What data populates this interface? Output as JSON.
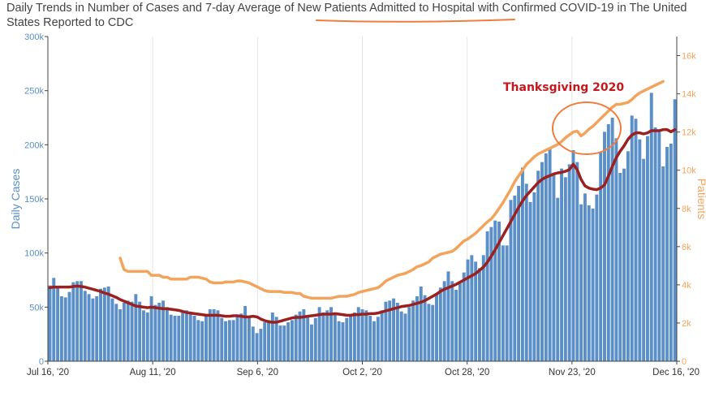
{
  "page": {
    "title_part1": "Daily Trends in Number of Cases and 7-day Average of ",
    "title_highlight": "New Patients Admitted to Hospital",
    "title_part2": " with Confirmed COVID-19 in The United States Reported to CDC"
  },
  "chart_data": {
    "type": "bar",
    "title": "Daily Trends in Number of Cases and 7-day Average of New Patients Admitted to Hospital with Confirmed COVID-19 in The United States Reported to CDC",
    "x_start": "2020-07-16",
    "x_end": "2020-12-16",
    "x_ticks": [
      "Jul 16, '20",
      "Aug 11, '20",
      "Sep 6, '20",
      "Oct 2, '20",
      "Oct 28, '20",
      "Nov 23, '20",
      "Dec 16, '20"
    ],
    "y_left": {
      "label": "Daily Cases",
      "ylim": [
        0,
        300000
      ],
      "ticks": [
        "0",
        "50k",
        "100k",
        "150k",
        "200k",
        "250k",
        "300k"
      ],
      "color": "#5b8fc7"
    },
    "y_right": {
      "label": "Patients",
      "ylim": [
        0,
        17000
      ],
      "ticks": [
        "0",
        "2k",
        "4k",
        "6k",
        "8k",
        "10k",
        "12k",
        "14k",
        "16k"
      ],
      "color": "#f3a45c"
    },
    "grid": "vertical",
    "series": [
      {
        "name": "Daily Cases",
        "kind": "bar",
        "axis": "left",
        "color": "#5b8fc7",
        "values": [
          70000,
          77000,
          68000,
          60000,
          59000,
          64000,
          73000,
          74000,
          74000,
          65000,
          62000,
          58000,
          60000,
          67000,
          68000,
          69000,
          58000,
          53000,
          48000,
          54000,
          56000,
          55000,
          62000,
          55000,
          47000,
          45000,
          60000,
          52000,
          54000,
          56000,
          50000,
          43000,
          42000,
          42000,
          47000,
          47000,
          45000,
          42000,
          38000,
          37000,
          43000,
          48000,
          48000,
          47000,
          40000,
          37000,
          38000,
          38000,
          42000,
          44000,
          51000,
          40000,
          32000,
          26000,
          30000,
          36000,
          38000,
          45000,
          41000,
          33000,
          33000,
          36000,
          38000,
          43000,
          46000,
          48000,
          42000,
          34000,
          40000,
          50000,
          45000,
          47000,
          50000,
          44000,
          37000,
          36000,
          40000,
          43000,
          45000,
          50000,
          48000,
          47000,
          42000,
          37000,
          41000,
          47000,
          55000,
          56000,
          58000,
          54000,
          46000,
          44000,
          50000,
          56000,
          60000,
          69000,
          61000,
          53000,
          52000,
          62000,
          68000,
          74000,
          83000,
          74000,
          66000,
          72000,
          82000,
          94000,
          98000,
          92000,
          86000,
          98000,
          120000,
          124000,
          130000,
          129000,
          107000,
          107000,
          149000,
          153000,
          162000,
          179000,
          164000,
          147000,
          156000,
          176000,
          184000,
          192000,
          196000,
          174000,
          151000,
          178000,
          170000,
          182000,
          195000,
          184000,
          145000,
          155000,
          144000,
          141000,
          154000,
          193000,
          212000,
          219000,
          225000,
          206000,
          174000,
          178000,
          194000,
          227000,
          224000,
          205000,
          187000,
          208000,
          248000,
          216000,
          212000,
          180000,
          198000,
          201000,
          242000
        ]
      },
      {
        "name": "Cases 7-day average",
        "kind": "line",
        "axis": "left",
        "color": "#9b2020",
        "values": [
          68000,
          68500,
          68500,
          68500,
          68500,
          68500,
          69000,
          69500,
          69000,
          68500,
          67500,
          66500,
          65500,
          64500,
          63000,
          62000,
          60500,
          59000,
          57000,
          55500,
          54000,
          52500,
          51000,
          50500,
          50000,
          49500,
          50000,
          49500,
          49000,
          48500,
          48500,
          48000,
          47500,
          47000,
          46000,
          45000,
          44500,
          44000,
          43500,
          43000,
          42500,
          42500,
          42500,
          42500,
          42000,
          41500,
          41500,
          42000,
          42000,
          41500,
          41000,
          41000,
          41500,
          41000,
          39000,
          37500,
          36500,
          36000,
          36000,
          37000,
          38000,
          39000,
          40000,
          40500,
          40500,
          41000,
          41500,
          42000,
          42500,
          43000,
          43500,
          43500,
          43500,
          44000,
          43500,
          43000,
          42500,
          42500,
          43000,
          43000,
          43500,
          43500,
          44000,
          44000,
          44500,
          45500,
          46500,
          47500,
          48500,
          49500,
          50500,
          51000,
          51500,
          52500,
          53500,
          54500,
          56000,
          58000,
          60000,
          62000,
          64500,
          66500,
          68000,
          69500,
          71000,
          73000,
          75000,
          77000,
          79000,
          81000,
          84000,
          87000,
          91500,
          97000,
          103000,
          109500,
          116000,
          122500,
          129000,
          135500,
          142000,
          148000,
          153000,
          157000,
          161000,
          165000,
          168000,
          170000,
          171500,
          173000,
          174000,
          174500,
          175500,
          177000,
          182000,
          177000,
          168000,
          162000,
          160000,
          159000,
          158500,
          160000,
          163000,
          171000,
          180000,
          188000,
          194000,
          199000,
          205000,
          209000,
          211000,
          211000,
          210000,
          211000,
          213000,
          213000,
          213000,
          214000,
          214000,
          212000,
          214000
        ]
      },
      {
        "name": "Patients",
        "kind": "line",
        "axis": "right",
        "color": "#f3a45c",
        "values": [
          null,
          null,
          null,
          null,
          null,
          null,
          null,
          null,
          null,
          null,
          null,
          null,
          null,
          null,
          null,
          null,
          null,
          null,
          5400,
          4800,
          4700,
          4700,
          4700,
          4700,
          4700,
          4700,
          4500,
          4500,
          4500,
          4400,
          4400,
          4300,
          4300,
          4300,
          4300,
          4300,
          4400,
          4400,
          4400,
          4350,
          4300,
          4150,
          4100,
          4100,
          4100,
          4150,
          4150,
          4150,
          4200,
          4200,
          4150,
          4100,
          4000,
          3900,
          3800,
          3700,
          3650,
          3650,
          3650,
          3650,
          3600,
          3600,
          3600,
          3550,
          3550,
          3400,
          3350,
          3300,
          3300,
          3300,
          3300,
          3300,
          3300,
          3350,
          3400,
          3400,
          3400,
          3450,
          3500,
          3600,
          3650,
          3700,
          3750,
          3800,
          3850,
          4000,
          4200,
          4300,
          4400,
          4500,
          4550,
          4600,
          4700,
          4800,
          4950,
          5000,
          5100,
          5200,
          5400,
          5500,
          5600,
          5650,
          5700,
          5750,
          5900,
          6100,
          6300,
          6400,
          6550,
          6700,
          6900,
          7100,
          7300,
          7450,
          7700,
          8000,
          8300,
          8650,
          9000,
          9400,
          9700,
          10000,
          10300,
          10500,
          10700,
          10850,
          10950,
          11050,
          11150,
          11250,
          11350,
          11500,
          11700,
          11850,
          12000,
          12050,
          11800,
          11950,
          12150,
          12300,
          12500,
          12700,
          12900,
          13100,
          13300,
          13450,
          13450,
          13500,
          13550,
          13700,
          13900,
          14050,
          14150,
          14250,
          14350,
          14450,
          14550,
          14650
        ]
      }
    ],
    "annotations": [
      {
        "text": "Thanksgiving 2020",
        "color": "#c4171e"
      }
    ]
  }
}
